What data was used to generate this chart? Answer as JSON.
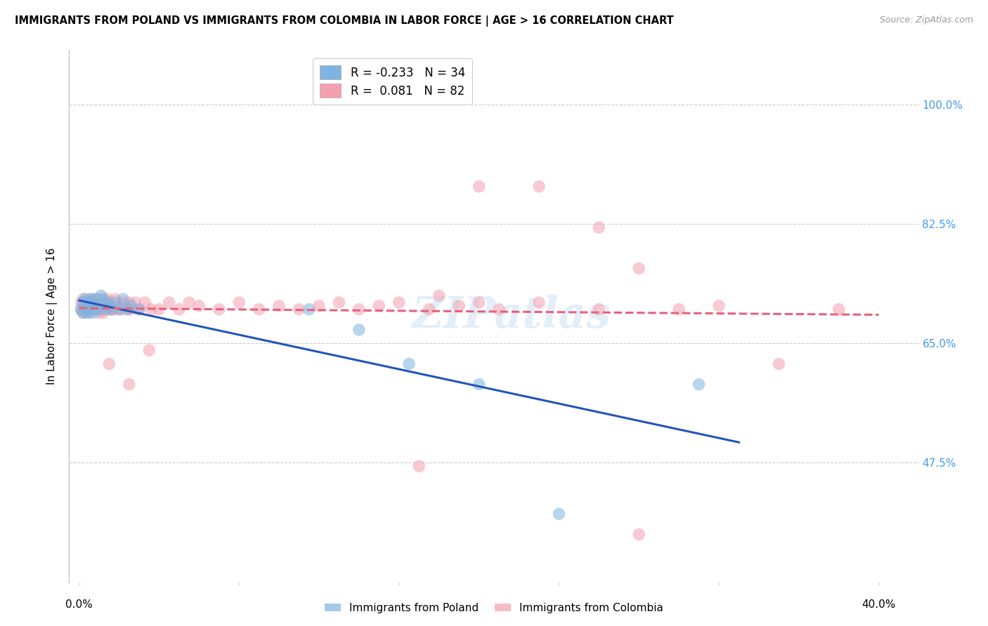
{
  "title": "IMMIGRANTS FROM POLAND VS IMMIGRANTS FROM COLOMBIA IN LABOR FORCE | AGE > 16 CORRELATION CHART",
  "source": "Source: ZipAtlas.com",
  "ylabel": "In Labor Force | Age > 16",
  "ytick_labels": [
    "47.5%",
    "65.0%",
    "82.5%",
    "100.0%"
  ],
  "ytick_vals": [
    0.475,
    0.65,
    0.825,
    1.0
  ],
  "legend_poland_r": "R = -0.233",
  "legend_poland_n": "N = 34",
  "legend_colombia_r": "R =  0.081",
  "legend_colombia_n": "N = 82",
  "poland_color": "#7fb3e0",
  "colombia_color": "#f4a0b0",
  "trend_poland_color": "#2255bb",
  "trend_colombia_color": "#e8607a",
  "background_color": "#ffffff",
  "watermark": "ZIPatlas",
  "poland_x": [
    0.001,
    0.002,
    0.002,
    0.003,
    0.003,
    0.004,
    0.004,
    0.005,
    0.005,
    0.006,
    0.006,
    0.007,
    0.007,
    0.008,
    0.009,
    0.01,
    0.011,
    0.012,
    0.013,
    0.014,
    0.015,
    0.016,
    0.018,
    0.02,
    0.022,
    0.024,
    0.026,
    0.03,
    0.115,
    0.14,
    0.165,
    0.2,
    0.24,
    0.31
  ],
  "poland_y": [
    0.7,
    0.695,
    0.71,
    0.7,
    0.715,
    0.705,
    0.695,
    0.71,
    0.7,
    0.715,
    0.705,
    0.7,
    0.695,
    0.715,
    0.705,
    0.7,
    0.72,
    0.715,
    0.7,
    0.71,
    0.705,
    0.7,
    0.71,
    0.7,
    0.715,
    0.7,
    0.705,
    0.7,
    0.7,
    0.67,
    0.62,
    0.59,
    0.4,
    0.59
  ],
  "colombia_x": [
    0.001,
    0.001,
    0.002,
    0.002,
    0.003,
    0.003,
    0.003,
    0.004,
    0.004,
    0.005,
    0.005,
    0.005,
    0.006,
    0.006,
    0.007,
    0.007,
    0.007,
    0.008,
    0.008,
    0.009,
    0.009,
    0.01,
    0.01,
    0.011,
    0.011,
    0.012,
    0.012,
    0.013,
    0.013,
    0.014,
    0.014,
    0.015,
    0.015,
    0.016,
    0.017,
    0.018,
    0.019,
    0.02,
    0.021,
    0.022,
    0.024,
    0.025,
    0.026,
    0.028,
    0.03,
    0.033,
    0.036,
    0.04,
    0.045,
    0.05,
    0.055,
    0.06,
    0.07,
    0.08,
    0.09,
    0.1,
    0.11,
    0.12,
    0.13,
    0.14,
    0.15,
    0.16,
    0.175,
    0.19,
    0.21,
    0.23,
    0.015,
    0.025,
    0.035,
    0.2,
    0.3,
    0.32,
    0.38,
    0.2,
    0.23,
    0.26,
    0.28,
    0.17,
    0.28,
    0.35,
    0.18,
    0.26
  ],
  "colombia_y": [
    0.7,
    0.71,
    0.695,
    0.715,
    0.7,
    0.71,
    0.7,
    0.705,
    0.71,
    0.7,
    0.71,
    0.695,
    0.705,
    0.715,
    0.7,
    0.71,
    0.7,
    0.705,
    0.71,
    0.7,
    0.715,
    0.705,
    0.695,
    0.71,
    0.7,
    0.705,
    0.695,
    0.71,
    0.7,
    0.705,
    0.715,
    0.7,
    0.71,
    0.7,
    0.7,
    0.715,
    0.7,
    0.705,
    0.7,
    0.71,
    0.7,
    0.71,
    0.7,
    0.71,
    0.7,
    0.71,
    0.7,
    0.7,
    0.71,
    0.7,
    0.71,
    0.705,
    0.7,
    0.71,
    0.7,
    0.705,
    0.7,
    0.705,
    0.71,
    0.7,
    0.705,
    0.71,
    0.7,
    0.705,
    0.7,
    0.71,
    0.62,
    0.59,
    0.64,
    0.71,
    0.7,
    0.705,
    0.7,
    0.88,
    0.88,
    0.82,
    0.76,
    0.47,
    0.37,
    0.62,
    0.72,
    0.7
  ],
  "xlim": [
    -0.005,
    0.42
  ],
  "ylim": [
    0.3,
    1.08
  ],
  "figsize": [
    14.06,
    8.92
  ],
  "dpi": 100
}
